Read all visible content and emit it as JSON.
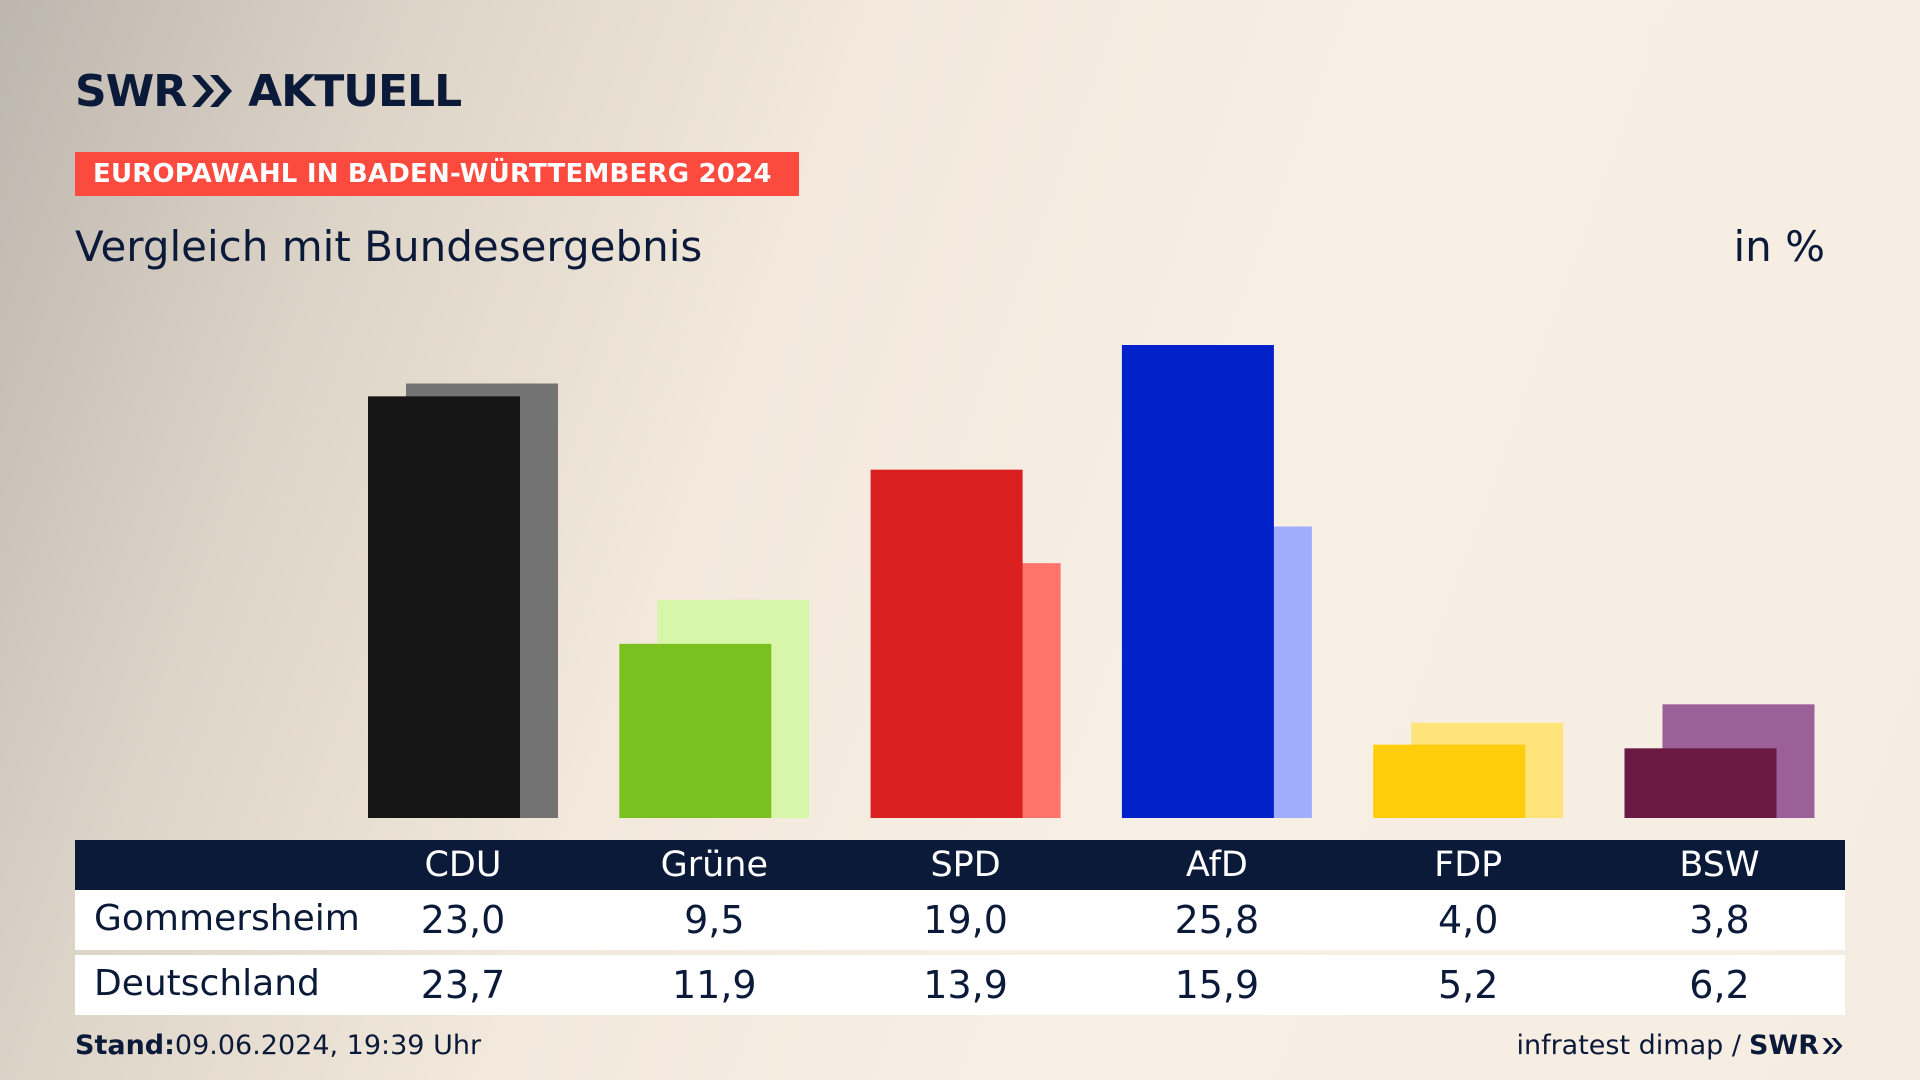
{
  "brand": {
    "logo_left": "SWR",
    "logo_right": "AKTUELL",
    "source_logo": "SWR"
  },
  "banner": "EUROPAWAHL IN BADEN-WÜRTTEMBERG 2024",
  "subtitle": "Vergleich mit Bundesergebnis",
  "unit": "in %",
  "footer": {
    "stand_label": "Stand:",
    "stand_value": "09.06.2024, 19:39 Uhr",
    "source": "infratest dimap /"
  },
  "chart_data": {
    "type": "bar",
    "categories": [
      "CDU",
      "Grüne",
      "SPD",
      "AfD",
      "FDP",
      "BSW"
    ],
    "ylim": [
      0,
      30
    ],
    "series": [
      {
        "name": "Gommersheim",
        "values": [
          23.0,
          9.5,
          19.0,
          25.8,
          4.0,
          3.8
        ],
        "labels": [
          "23,0",
          "9,5",
          "19,0",
          "25,8",
          "4,0",
          "3,8"
        ],
        "colors": [
          "#151515",
          "#7ac01e",
          "#d91f20",
          "#0021c9",
          "#ffcd0b",
          "#6a1942"
        ]
      },
      {
        "name": "Deutschland",
        "values": [
          23.7,
          11.9,
          13.9,
          15.9,
          5.2,
          6.2
        ],
        "labels": [
          "23,7",
          "11,9",
          "13,9",
          "15,9",
          "5,2",
          "6,2"
        ],
        "colors": [
          "#737373",
          "#d8f6a9",
          "#ff756c",
          "#a0adff",
          "#ffe47b",
          "#9b6097"
        ]
      }
    ]
  }
}
